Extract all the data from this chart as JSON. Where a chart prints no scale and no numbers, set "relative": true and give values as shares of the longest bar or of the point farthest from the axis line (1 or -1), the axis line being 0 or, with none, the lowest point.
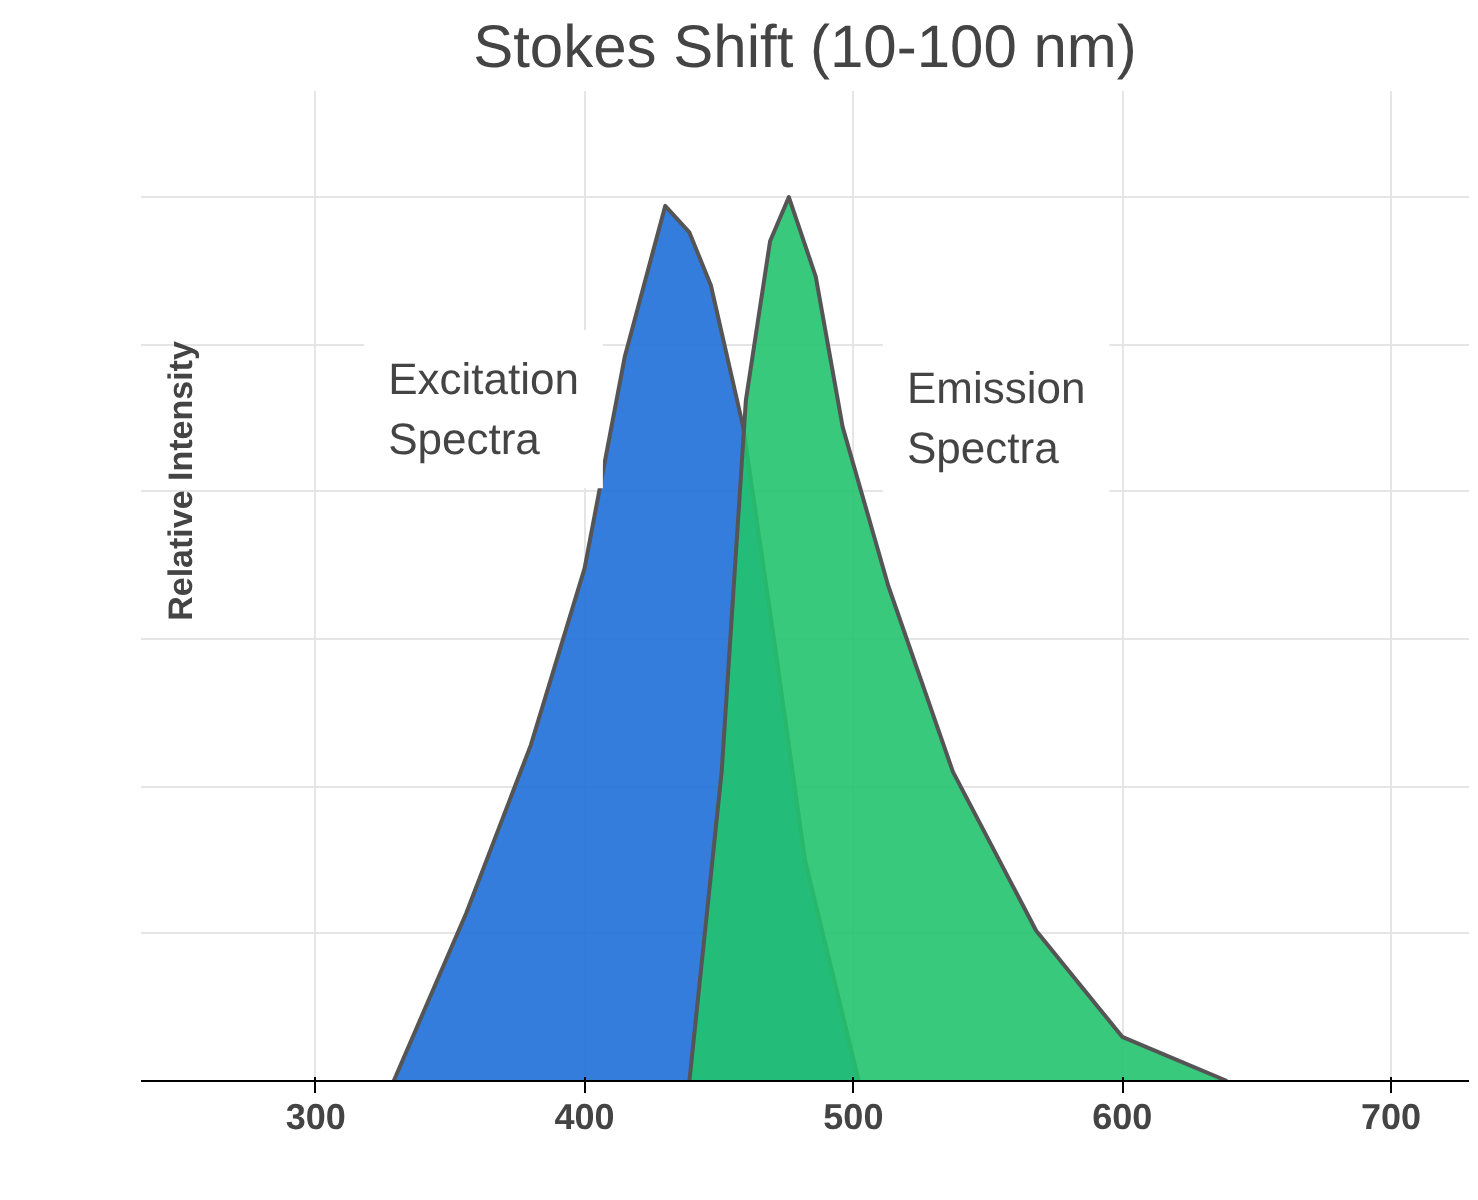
{
  "chart_data": {
    "type": "area",
    "title": "Stokes Shift (10-100 nm)",
    "ylabel": "Relative Intensity",
    "relative": true,
    "xlim": [
      235,
      729
    ],
    "xticks": [
      300,
      400,
      500,
      600,
      700
    ],
    "grid": true,
    "series": [
      {
        "name": "Excitation Spectra",
        "color": "#1e6fd9",
        "x": [
          329,
          356,
          380,
          400,
          415,
          430,
          439,
          447,
          459,
          470,
          482,
          502
        ],
        "values": [
          0,
          0.19,
          0.38,
          0.58,
          0.82,
          0.99,
          0.96,
          0.9,
          0.74,
          0.51,
          0.25,
          0
        ]
      },
      {
        "name": "Emission Spectra",
        "color": "#22c36e",
        "x": [
          439,
          451,
          460,
          469,
          476,
          486,
          496,
          513,
          537,
          568,
          600,
          639
        ],
        "values": [
          0,
          0.35,
          0.77,
          0.95,
          1.0,
          0.91,
          0.74,
          0.56,
          0.35,
          0.17,
          0.05,
          0
        ]
      }
    ]
  }
}
